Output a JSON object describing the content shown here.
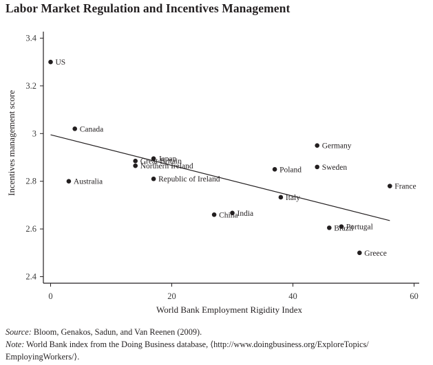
{
  "chart_data": {
    "type": "scatter",
    "title": "Labor Market Regulation and Incentives Management",
    "xlabel": "World Bank Employment Rigidity Index",
    "ylabel": "Incentives management score",
    "xlim": [
      -1,
      61
    ],
    "ylim": [
      2.37,
      3.42
    ],
    "xticks": [
      0,
      20,
      40,
      60
    ],
    "xtick_labels": [
      "0",
      "20",
      "40",
      "60"
    ],
    "yticks": [
      2.4,
      2.6,
      2.8,
      3.0,
      3.2,
      3.4
    ],
    "ytick_labels": [
      "2.4",
      "2.6",
      "2.8",
      "3",
      "3.2",
      "3.4"
    ],
    "grid": false,
    "points": [
      {
        "label": "US",
        "x": 0,
        "y": 3.3
      },
      {
        "label": "Canada",
        "x": 4,
        "y": 3.02
      },
      {
        "label": "Australia",
        "x": 3,
        "y": 2.8
      },
      {
        "label": "Great Britain",
        "x": 14,
        "y": 2.885
      },
      {
        "label": "Northern Ireland",
        "x": 14,
        "y": 2.865
      },
      {
        "label": "Japan",
        "x": 17,
        "y": 2.895
      },
      {
        "label": "Republic of Ireland",
        "x": 17,
        "y": 2.81
      },
      {
        "label": "China",
        "x": 27,
        "y": 2.66
      },
      {
        "label": "India",
        "x": 30,
        "y": 2.667
      },
      {
        "label": "Italy",
        "x": 38,
        "y": 2.733
      },
      {
        "label": "Poland",
        "x": 37,
        "y": 2.85
      },
      {
        "label": "Germany",
        "x": 44,
        "y": 2.95
      },
      {
        "label": "Sweden",
        "x": 44,
        "y": 2.86
      },
      {
        "label": "France",
        "x": 56,
        "y": 2.78
      },
      {
        "label": "Brazil",
        "x": 46,
        "y": 2.605
      },
      {
        "label": "Portugal",
        "x": 48,
        "y": 2.61
      },
      {
        "label": "Greece",
        "x": 51,
        "y": 2.5
      }
    ],
    "fit_line": {
      "x": [
        0,
        56
      ],
      "y": [
        2.995,
        2.635
      ]
    }
  },
  "footer": {
    "source_label": "Source:",
    "source_text": " Bloom, Genakos, Sadun, and Van Reenen (2009).",
    "note_label": "Note:",
    "note_text": " World Bank index from the Doing Business database, ⟨http://www.doingbusiness.org/ExploreTopics/ EmployingWorkers/⟩."
  }
}
